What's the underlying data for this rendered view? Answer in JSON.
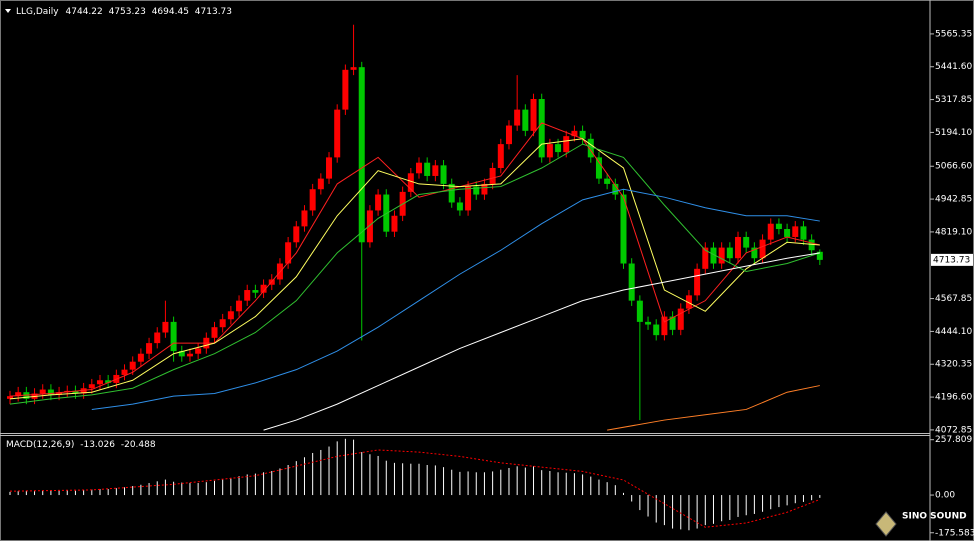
{
  "chart_data": [
    {
      "type": "candlestick",
      "symbol": "LLG,Daily",
      "open": [
        4190,
        4200,
        4215,
        4190,
        4210,
        4225,
        4205,
        4215,
        4220,
        4210,
        4230,
        4245,
        4260,
        4250,
        4280,
        4300,
        4330,
        4360,
        4400,
        4440,
        4480,
        4370,
        4350,
        4360,
        4380,
        4420,
        4460,
        4490,
        4520,
        4560,
        4600,
        4590,
        4620,
        4640,
        4700,
        4780,
        4840,
        4900,
        4980,
        5020,
        5100,
        5280,
        5430,
        5440,
        4780,
        4900,
        4960,
        4820,
        4880,
        4970,
        5040,
        5080,
        5030,
        5070,
        5000,
        4930,
        4900,
        4990,
        4960,
        5000,
        5060,
        5150,
        5220,
        5280,
        5200,
        5320,
        5100,
        5150,
        5120,
        5180,
        5200,
        5170,
        5100,
        5020,
        5000,
        4960,
        4700,
        4560,
        4480,
        4470,
        4430,
        4500,
        4450,
        4530,
        4580,
        4680,
        4760,
        4700,
        4760,
        4720,
        4800,
        4760,
        4720,
        4790,
        4850,
        4830,
        4800,
        4840,
        4790,
        4744.22
      ],
      "high": [
        4220,
        4235,
        4235,
        4230,
        4245,
        4245,
        4235,
        4240,
        4240,
        4250,
        4265,
        4280,
        4280,
        4300,
        4320,
        4350,
        4380,
        4420,
        4460,
        4560,
        4500,
        4390,
        4380,
        4400,
        4440,
        4480,
        4510,
        4540,
        4580,
        4620,
        4620,
        4640,
        4660,
        4720,
        4800,
        4860,
        4920,
        5000,
        5040,
        5120,
        5300,
        5450,
        5600,
        5460,
        4920,
        4980,
        4980,
        4900,
        4990,
        5060,
        5100,
        5100,
        5090,
        5090,
        5020,
        4950,
        5010,
        5010,
        5020,
        5080,
        5170,
        5240,
        5410,
        5300,
        5340,
        5340,
        5170,
        5170,
        5200,
        5220,
        5220,
        5190,
        5120,
        5040,
        5020,
        4980,
        4720,
        4580,
        4500,
        4490,
        4520,
        4520,
        4550,
        4600,
        4700,
        4780,
        4780,
        4780,
        4780,
        4820,
        4820,
        4780,
        4810,
        4870,
        4870,
        4850,
        4860,
        4860,
        4810,
        4753.23
      ],
      "low": [
        4170,
        4180,
        4170,
        4170,
        4190,
        4185,
        4185,
        4195,
        4190,
        4190,
        4210,
        4225,
        4230,
        4230,
        4260,
        4280,
        4310,
        4340,
        4380,
        4420,
        4330,
        4330,
        4330,
        4340,
        4360,
        4400,
        4440,
        4470,
        4500,
        4540,
        4570,
        4570,
        4600,
        4620,
        4680,
        4760,
        4820,
        4880,
        4960,
        5000,
        5080,
        5260,
        5410,
        4410,
        4760,
        4880,
        4800,
        4800,
        4860,
        4950,
        5020,
        5010,
        5010,
        4980,
        4910,
        4880,
        4880,
        4940,
        4940,
        4980,
        5040,
        5130,
        5200,
        5180,
        5180,
        5080,
        5080,
        5100,
        5100,
        5160,
        5150,
        5080,
        5000,
        4980,
        4940,
        4680,
        4540,
        4110,
        4450,
        4410,
        4410,
        4430,
        4430,
        4510,
        4560,
        4660,
        4680,
        4680,
        4700,
        4700,
        4740,
        4700,
        4700,
        4770,
        4810,
        4780,
        4780,
        4770,
        4730,
        4694.45
      ],
      "close": [
        4200,
        4215,
        4190,
        4210,
        4225,
        4205,
        4215,
        4220,
        4210,
        4230,
        4245,
        4260,
        4250,
        4280,
        4300,
        4330,
        4360,
        4400,
        4440,
        4480,
        4370,
        4350,
        4360,
        4380,
        4420,
        4460,
        4490,
        4520,
        4560,
        4600,
        4590,
        4620,
        4640,
        4700,
        4780,
        4840,
        4900,
        4980,
        5020,
        5100,
        5280,
        5430,
        5440,
        4780,
        4900,
        4960,
        4820,
        4880,
        4970,
        5040,
        5080,
        5030,
        5070,
        5000,
        4930,
        4900,
        4990,
        4960,
        5000,
        5060,
        5150,
        5220,
        5280,
        5200,
        5320,
        5100,
        5150,
        5120,
        5180,
        5200,
        5170,
        5100,
        5020,
        5000,
        4960,
        4700,
        4560,
        4480,
        4470,
        4430,
        4500,
        4450,
        4530,
        4580,
        4680,
        4760,
        4700,
        4760,
        4720,
        4800,
        4760,
        4720,
        4790,
        4850,
        4830,
        4800,
        4840,
        4790,
        4750,
        4713.73
      ],
      "up_color": "#ff0000",
      "down_color": "#00c800",
      "ylim": [
        4065,
        5663
      ],
      "yticks": [
        5565.35,
        {
          "value": 5441.6,
          "label": "5441.60"
        },
        5317.85,
        {
          "value": 5194.1,
          "label": "5194.10"
        },
        {
          "value": 5066.6,
          "label": "5066.60"
        },
        4942.85,
        {
          "value": 4819.1,
          "label": "4819.10"
        },
        4567.85,
        {
          "value": 4444.1,
          "label": "4444.10"
        },
        4320.35,
        {
          "value": 4196.6,
          "label": "4196.60"
        },
        4072.85
      ],
      "lines": [
        {
          "color": "#ff2020",
          "x": [
            0,
            5,
            10,
            15,
            20,
            25,
            30,
            35,
            40,
            45,
            50,
            55,
            60,
            65,
            70,
            75,
            80,
            85,
            90,
            95,
            99
          ],
          "values": [
            4200,
            4210,
            4225,
            4290,
            4400,
            4400,
            4560,
            4740,
            5000,
            5100,
            4950,
            4990,
            5030,
            5230,
            5170,
            4950,
            4480,
            4560,
            4740,
            4800,
            4770
          ]
        },
        {
          "color": "#ffff60",
          "x": [
            0,
            5,
            10,
            15,
            20,
            25,
            30,
            35,
            40,
            45,
            50,
            55,
            60,
            65,
            70,
            75,
            80,
            85,
            90,
            95,
            99
          ],
          "values": [
            4190,
            4205,
            4215,
            4260,
            4360,
            4400,
            4500,
            4650,
            4880,
            5050,
            5000,
            4990,
            5000,
            5150,
            5170,
            5060,
            4600,
            4520,
            4680,
            4780,
            4770
          ]
        },
        {
          "color": "#30c030",
          "x": [
            0,
            5,
            10,
            15,
            20,
            25,
            30,
            35,
            40,
            45,
            50,
            55,
            60,
            65,
            70,
            75,
            80,
            85,
            90,
            95,
            99
          ],
          "values": [
            4170,
            4190,
            4205,
            4230,
            4300,
            4360,
            4440,
            4560,
            4740,
            4870,
            4960,
            4980,
            4990,
            5060,
            5150,
            5100,
            4920,
            4750,
            4670,
            4700,
            4740
          ]
        },
        {
          "color": "#2f8fe8",
          "x": [
            10,
            15,
            20,
            25,
            30,
            35,
            40,
            45,
            50,
            55,
            60,
            65,
            70,
            75,
            80,
            85,
            90,
            95,
            99
          ],
          "values": [
            4150,
            4170,
            4200,
            4210,
            4250,
            4300,
            4370,
            4460,
            4560,
            4660,
            4750,
            4850,
            4940,
            4980,
            4950,
            4910,
            4880,
            4880,
            4860
          ]
        },
        {
          "color": "#ffffff",
          "x": [
            31,
            35,
            40,
            45,
            50,
            55,
            60,
            65,
            70,
            75,
            80,
            85,
            90,
            95,
            99
          ],
          "values": [
            4072,
            4110,
            4170,
            4240,
            4310,
            4380,
            4440,
            4500,
            4560,
            4600,
            4630,
            4660,
            4690,
            4720,
            4740
          ]
        },
        {
          "color": "#ff7f27",
          "x": [
            73,
            80,
            85,
            90,
            95,
            99
          ],
          "values": [
            4072,
            4110,
            4130,
            4150,
            4215,
            4240
          ]
        }
      ]
    },
    {
      "type": "macd",
      "title": "MACD(12,26,9)",
      "color": "#ffffff",
      "values": [
        15,
        18,
        20,
        18,
        20,
        22,
        20,
        22,
        20,
        24,
        26,
        28,
        28,
        32,
        36,
        42,
        48,
        56,
        64,
        72,
        62,
        58,
        56,
        56,
        60,
        66,
        72,
        80,
        88,
        96,
        100,
        106,
        112,
        124,
        140,
        158,
        176,
        196,
        210,
        226,
        250,
        262,
        258,
        200,
        190,
        182,
        160,
        150,
        148,
        146,
        146,
        140,
        138,
        130,
        118,
        108,
        110,
        106,
        106,
        110,
        118,
        126,
        134,
        128,
        134,
        116,
        112,
        106,
        104,
        102,
        96,
        86,
        72,
        60,
        46,
        10,
        -30,
        -70,
        -100,
        -128,
        -140,
        -156,
        -160,
        -164,
        -156,
        -140,
        -134,
        -122,
        -116,
        -102,
        -94,
        -88,
        -78,
        -66,
        -56,
        -48,
        -38,
        -32,
        -24,
        -13.026
      ],
      "signal": {
        "color": "#ff0000",
        "x": [
          0,
          10,
          20,
          30,
          40,
          45,
          50,
          55,
          60,
          65,
          70,
          75,
          80,
          85,
          90,
          95,
          99
        ],
        "values": [
          18,
          24,
          50,
          90,
          180,
          210,
          200,
          180,
          150,
          130,
          110,
          70,
          -40,
          -150,
          -130,
          -80,
          -20.488
        ]
      },
      "ylim": [
        -200,
        275
      ],
      "yticks": [
        257.809,
        {
          "value": 0,
          "label": "0.00"
        },
        -175.583
      ]
    }
  ],
  "logo": "SINO SOUND"
}
